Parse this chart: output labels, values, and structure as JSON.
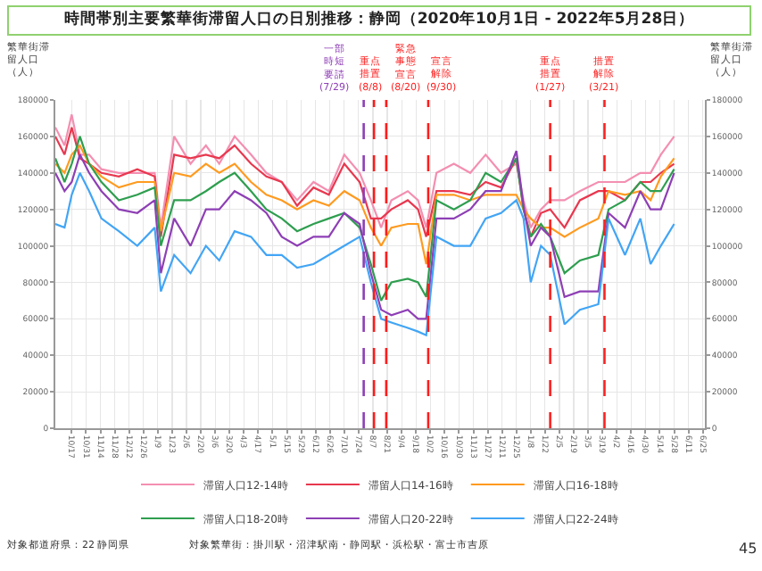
{
  "chart_data": {
    "type": "line",
    "title": "時間帯別主要繁華街滞留人口の日別推移：静岡（2020年10月1日 - 2022年5月28日）",
    "ylabel": "繁華街滞留人口（人）",
    "y2label": "繁華街滞留人口（人）",
    "x": [
      "2020-10-01",
      "2020-10-10",
      "2020-10-17",
      "2020-10-25",
      "2020-11-03",
      "2020-11-15",
      "2020-12-02",
      "2020-12-20",
      "2021-01-06",
      "2021-01-12",
      "2021-01-25",
      "2021-02-10",
      "2021-02-25",
      "2021-03-10",
      "2021-03-25",
      "2021-04-10",
      "2021-04-25",
      "2021-05-10",
      "2021-05-25",
      "2021-06-10",
      "2021-06-25",
      "2021-07-10",
      "2021-07-25",
      "2021-08-05",
      "2021-08-15",
      "2021-08-25",
      "2021-09-10",
      "2021-09-20",
      "2021-09-28",
      "2021-10-08",
      "2021-10-25",
      "2021-11-10",
      "2021-11-25",
      "2021-12-10",
      "2021-12-25",
      "2022-01-01",
      "2022-01-08",
      "2022-01-18",
      "2022-01-27",
      "2022-02-10",
      "2022-02-25",
      "2022-03-15",
      "2022-03-25",
      "2022-04-10",
      "2022-04-25",
      "2022-05-05",
      "2022-05-15",
      "2022-05-28"
    ],
    "series": [
      {
        "name": "滞留人口12-14時",
        "color": "#f48fb1",
        "values": [
          165000,
          155000,
          172000,
          150000,
          150000,
          142000,
          140000,
          140000,
          140000,
          110000,
          160000,
          145000,
          155000,
          145000,
          160000,
          150000,
          140000,
          135000,
          125000,
          135000,
          130000,
          150000,
          140000,
          125000,
          110000,
          125000,
          130000,
          125000,
          110000,
          140000,
          145000,
          140000,
          150000,
          140000,
          145000,
          125000,
          110000,
          120000,
          125000,
          125000,
          130000,
          135000,
          135000,
          135000,
          140000,
          140000,
          150000,
          160000
        ]
      },
      {
        "name": "滞留人口14-16時",
        "color": "#e8384f",
        "values": [
          160000,
          150000,
          165000,
          148000,
          145000,
          140000,
          138000,
          142000,
          138000,
          105000,
          150000,
          148000,
          150000,
          148000,
          155000,
          145000,
          138000,
          135000,
          122000,
          132000,
          128000,
          145000,
          135000,
          115000,
          115000,
          120000,
          125000,
          120000,
          105000,
          130000,
          130000,
          128000,
          135000,
          132000,
          148000,
          120000,
          105000,
          118000,
          120000,
          110000,
          125000,
          130000,
          130000,
          125000,
          135000,
          135000,
          140000,
          145000
        ]
      },
      {
        "name": "滞留人口16-18時",
        "color": "#ff9a1f",
        "values": [
          145000,
          140000,
          150000,
          155000,
          145000,
          138000,
          132000,
          135000,
          135000,
          108000,
          140000,
          138000,
          145000,
          140000,
          145000,
          135000,
          128000,
          125000,
          120000,
          125000,
          122000,
          130000,
          125000,
          110000,
          100000,
          110000,
          112000,
          112000,
          90000,
          128000,
          128000,
          125000,
          128000,
          128000,
          128000,
          120000,
          115000,
          110000,
          110000,
          105000,
          110000,
          115000,
          130000,
          128000,
          130000,
          125000,
          138000,
          148000
        ]
      },
      {
        "name": "滞留人口18-20時",
        "color": "#2e9e4f",
        "values": [
          148000,
          135000,
          145000,
          160000,
          145000,
          135000,
          125000,
          128000,
          132000,
          100000,
          125000,
          125000,
          130000,
          135000,
          140000,
          130000,
          120000,
          115000,
          108000,
          112000,
          115000,
          118000,
          110000,
          90000,
          70000,
          80000,
          82000,
          80000,
          72000,
          125000,
          120000,
          125000,
          140000,
          135000,
          148000,
          120000,
          105000,
          112000,
          105000,
          85000,
          92000,
          95000,
          120000,
          125000,
          135000,
          130000,
          130000,
          142000
        ]
      },
      {
        "name": "滞留人口20-22時",
        "color": "#8e3fb5",
        "values": [
          140000,
          130000,
          135000,
          150000,
          140000,
          130000,
          120000,
          118000,
          125000,
          85000,
          115000,
          100000,
          120000,
          120000,
          130000,
          125000,
          118000,
          105000,
          100000,
          105000,
          105000,
          118000,
          112000,
          85000,
          65000,
          62000,
          65000,
          60000,
          60000,
          115000,
          115000,
          120000,
          130000,
          130000,
          152000,
          122000,
          100000,
          110000,
          105000,
          72000,
          75000,
          75000,
          118000,
          110000,
          130000,
          120000,
          120000,
          140000
        ]
      },
      {
        "name": "滞留人口22-24時",
        "color": "#42a5f5",
        "values": [
          112000,
          110000,
          128000,
          140000,
          130000,
          115000,
          108000,
          100000,
          110000,
          75000,
          95000,
          85000,
          100000,
          92000,
          108000,
          105000,
          95000,
          95000,
          88000,
          90000,
          95000,
          100000,
          105000,
          80000,
          60000,
          58000,
          55000,
          53000,
          51000,
          105000,
          100000,
          100000,
          115000,
          118000,
          125000,
          115000,
          80000,
          100000,
          95000,
          57000,
          65000,
          68000,
          115000,
          95000,
          115000,
          90000,
          100000,
          112000
        ]
      }
    ],
    "ylim": [
      0,
      180000
    ],
    "yticks": [
      0,
      20000,
      40000,
      60000,
      80000,
      100000,
      120000,
      140000,
      160000,
      180000
    ],
    "y2lim": [
      0,
      180000
    ],
    "y2ticks": [
      0,
      20000,
      40000,
      60000,
      80000,
      100000,
      120000,
      140000,
      160000,
      180000
    ],
    "xlim": [
      "2020-10-01",
      "2022-06-27"
    ],
    "xticks": [
      {
        "value": "2020-10-17",
        "label": "10/17"
      },
      {
        "value": "2020-10-31",
        "label": "10/31"
      },
      {
        "value": "2020-11-14",
        "label": "11/14"
      },
      {
        "value": "2020-11-28",
        "label": "11/28"
      },
      {
        "value": "2020-12-12",
        "label": "12/12"
      },
      {
        "value": "2020-12-26",
        "label": "12/26"
      },
      {
        "value": "2021-01-09",
        "label": "1/9"
      },
      {
        "value": "2021-01-23",
        "label": "1/23"
      },
      {
        "value": "2021-02-06",
        "label": "2/6"
      },
      {
        "value": "2021-02-20",
        "label": "2/20"
      },
      {
        "value": "2021-03-06",
        "label": "3/6"
      },
      {
        "value": "2021-03-20",
        "label": "3/20"
      },
      {
        "value": "2021-04-03",
        "label": "4/3"
      },
      {
        "value": "2021-04-17",
        "label": "4/17"
      },
      {
        "value": "2021-05-01",
        "label": "5/1"
      },
      {
        "value": "2021-05-15",
        "label": "5/15"
      },
      {
        "value": "2021-05-29",
        "label": "5/29"
      },
      {
        "value": "2021-06-12",
        "label": "6/12"
      },
      {
        "value": "2021-06-26",
        "label": "6/26"
      },
      {
        "value": "2021-07-10",
        "label": "7/10"
      },
      {
        "value": "2021-07-24",
        "label": "7/24"
      },
      {
        "value": "2021-08-07",
        "label": "8/7"
      },
      {
        "value": "2021-08-21",
        "label": "8/21"
      },
      {
        "value": "2021-09-04",
        "label": "9/4"
      },
      {
        "value": "2021-09-18",
        "label": "9/18"
      },
      {
        "value": "2021-10-02",
        "label": "10/2"
      },
      {
        "value": "2021-10-16",
        "label": "10/16"
      },
      {
        "value": "2021-10-30",
        "label": "10/30"
      },
      {
        "value": "2021-11-13",
        "label": "11/13"
      },
      {
        "value": "2021-11-27",
        "label": "11/27"
      },
      {
        "value": "2021-12-11",
        "label": "12/11"
      },
      {
        "value": "2021-12-25",
        "label": "12/25"
      },
      {
        "value": "2022-01-08",
        "label": "1/8"
      },
      {
        "value": "2022-01-22",
        "label": "1/22"
      },
      {
        "value": "2022-02-05",
        "label": "2/5"
      },
      {
        "value": "2022-02-19",
        "label": "2/19"
      },
      {
        "value": "2022-03-05",
        "label": "3/5"
      },
      {
        "value": "2022-03-19",
        "label": "3/19"
      },
      {
        "value": "2022-04-02",
        "label": "4/2"
      },
      {
        "value": "2022-04-16",
        "label": "4/16"
      },
      {
        "value": "2022-04-30",
        "label": "4/30"
      },
      {
        "value": "2022-05-14",
        "label": "5/14"
      },
      {
        "value": "2022-05-28",
        "label": "5/28"
      },
      {
        "value": "2022-06-11",
        "label": "6/11"
      },
      {
        "value": "2022-06-25",
        "label": "6/25"
      }
    ],
    "ref_lines": [
      {
        "axis": "x",
        "value": "2021-07-29",
        "label": "一部時短要請(7/29)",
        "color": "#8e3fb5",
        "line_style": "dashed"
      },
      {
        "axis": "x",
        "value": "2021-08-08",
        "label": "重点措置(8/8)",
        "color": "#ff1a1a",
        "line_style": "dashed"
      },
      {
        "axis": "x",
        "value": "2021-08-20",
        "label": "緊急事態宣言(8/20)",
        "color": "#fe1c1c",
        "line_style": "dashed"
      },
      {
        "axis": "x",
        "value": "2021-09-30",
        "label": "宣言解除(9/30)",
        "color": "#fd1e1e",
        "line_style": "dashed"
      },
      {
        "axis": "x",
        "value": "2022-01-27",
        "label": "重点措置(1/27)",
        "color": "#fc2020",
        "line_style": "dashed"
      },
      {
        "axis": "x",
        "value": "2022-03-21",
        "label": "措置解除(3/21)",
        "color": "#fb2222",
        "line_style": "dashed"
      }
    ],
    "annotations": [
      "対象都道府県：22 静岡県",
      "対象繁華街：掛川駅・沼津駅南・静岡駅・浜松駅・富士市吉原",
      "45"
    ],
    "grid": true,
    "legend": "bottom",
    "line_style": "solid",
    "marker": "none"
  }
}
